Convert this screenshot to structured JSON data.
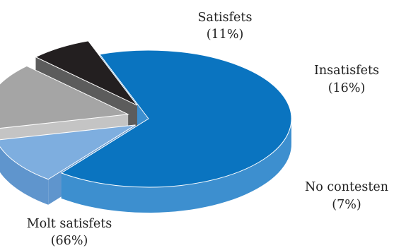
{
  "chart_data": {
    "type": "pie",
    "style": "3d-exploded",
    "slices": [
      {
        "name": "Molt satisfets",
        "pct_label": "(66%)",
        "value": 66,
        "color": "#0a74c0",
        "side_color": "#3d8fcf"
      },
      {
        "name": "Satisfets",
        "pct_label": "(11%)",
        "value": 11,
        "color": "#7eaedf",
        "side_color": "#5f95cd"
      },
      {
        "name": "Insatisfets",
        "pct_label": "(16%)",
        "value": 16,
        "color": "#a5a5a5",
        "side_color": "#c4c4c4"
      },
      {
        "name": "No contesten",
        "pct_label": "(7%)",
        "value": 7,
        "color": "#231f20",
        "side_color": "#5c5c5c"
      }
    ],
    "legend": "none"
  }
}
